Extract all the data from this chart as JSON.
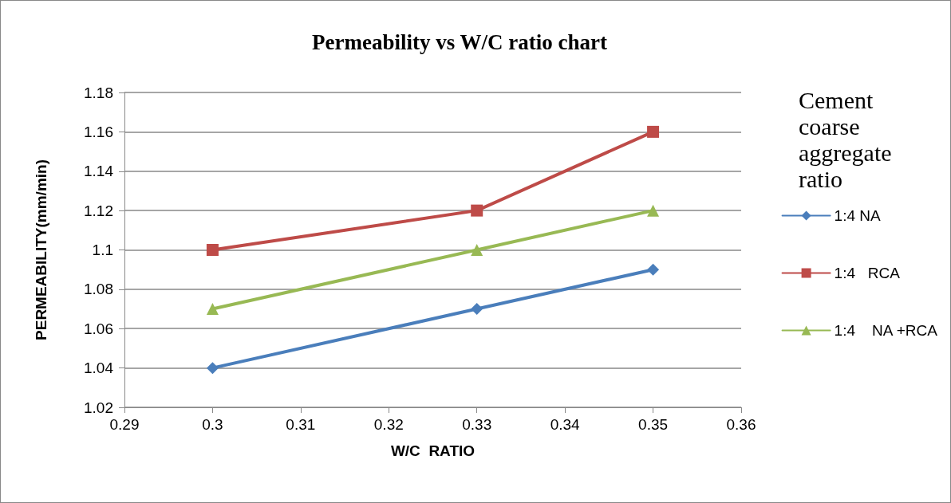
{
  "chart_data": {
    "type": "line",
    "title": "Permeability vs W/C ratio chart",
    "xlabel": "W/C  RATIO",
    "ylabel": "PERMEABILITY(mm/min)",
    "legend_title": "Cement coarse aggregate ratio",
    "legend": "right",
    "grid": "y",
    "line_style": "solid",
    "xlim": [
      0.29,
      0.36
    ],
    "xticks": [
      0.29,
      0.3,
      0.31,
      0.32,
      0.33,
      0.34,
      0.35,
      0.36
    ],
    "ylim": [
      1.02,
      1.18
    ],
    "yticks": [
      1.02,
      1.04,
      1.06,
      1.08,
      1.1,
      1.12,
      1.14,
      1.16,
      1.18
    ],
    "x": [
      0.3,
      0.33,
      0.35
    ],
    "series": [
      {
        "name": "1:4 NA",
        "color": "#4a7ebb",
        "marker": "diamond",
        "values": [
          1.04,
          1.07,
          1.09
        ]
      },
      {
        "name": "1:4   RCA",
        "color": "#be4b48",
        "marker": "square",
        "values": [
          1.1,
          1.12,
          1.16
        ]
      },
      {
        "name": "1:4    NA +RCA",
        "color": "#98b954",
        "marker": "triangle",
        "values": [
          1.07,
          1.1,
          1.12
        ]
      }
    ]
  }
}
